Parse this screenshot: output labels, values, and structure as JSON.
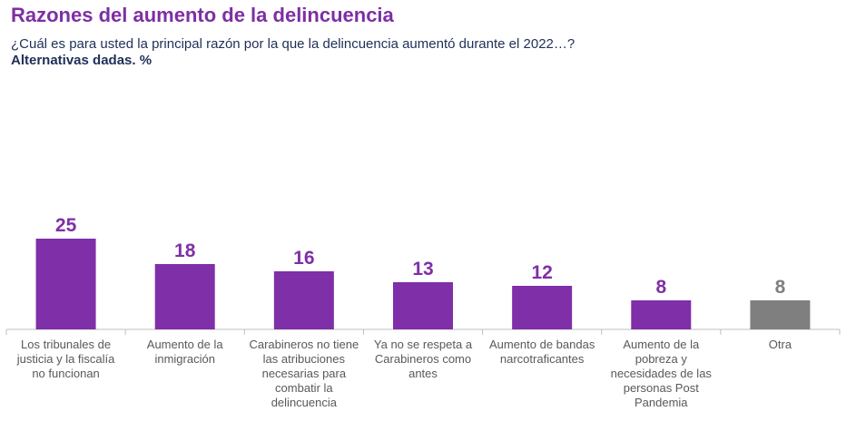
{
  "header": {
    "title": "Razones del aumento de la delincuencia",
    "subtitle": "¿Cuál es para usted la principal razón por la que la delincuencia aumentó durante el 2022…?",
    "note": "Alternativas dadas. %"
  },
  "colors": {
    "title": "#7d2fa3",
    "text": "#1f2f57",
    "bar": "#7f2fa8",
    "bar_other": "#7f7f7f",
    "axis": "#bfbfbf",
    "category_text": "#595959"
  },
  "chart_data": {
    "type": "bar",
    "title": "Razones del aumento de la delincuencia",
    "xlabel": "",
    "ylabel": "",
    "unit": "%",
    "ylim": [
      0,
      25
    ],
    "grid": false,
    "categories": [
      "Los tribunales de justicia y la fiscalía no funcionan",
      "Aumento de la inmigración",
      "Carabineros no tiene las atribuciones necesarias para combatir la delincuencia",
      "Ya no se respeta a Carabineros como antes",
      "Aumento de bandas narcotraficantes",
      "Aumento de la pobreza y necesidades de las personas Post Pandemia",
      "Otra"
    ],
    "values": [
      25,
      18,
      16,
      13,
      12,
      8,
      8
    ],
    "highlight": [
      "primary",
      "primary",
      "primary",
      "primary",
      "primary",
      "primary",
      "other"
    ]
  }
}
